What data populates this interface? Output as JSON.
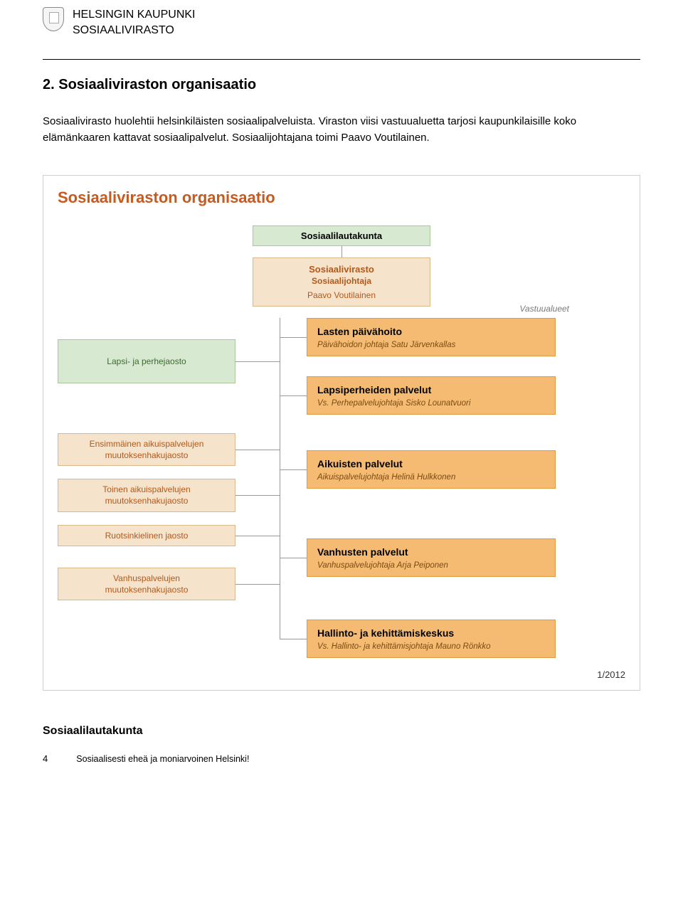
{
  "header": {
    "org_line1": "HELSINGIN KAUPUNKI",
    "org_line2": "SOSIAALIVIRASTO"
  },
  "section_title": "2. Sosiaaliviraston organisaatio",
  "intro_text": "Sosiaalivirasto huolehtii helsinkiläisten sosiaalipalveluista. Viraston viisi vastuualuetta tarjosi kaupunkilaisille koko elämänkaaren kattavat sosiaalipalvelut. Sosiaalijohtajana toimi Paavo Voutilainen.",
  "diagram": {
    "title": "Sosiaaliviraston organisaatio",
    "title_color": "#c65a1f",
    "border_color": "#cfcfcf",
    "date": "1/2012",
    "colors": {
      "green_bg": "#d8e9d2",
      "green_border": "#a8c79a",
      "tan_bg": "#f5e3cb",
      "tan_border": "#d9b88c",
      "orange_bg": "#f5bb73",
      "orange_border": "#e09a3e",
      "tan_text": "#b3581a",
      "line": "#999999"
    },
    "top": {
      "box1": "Sosiaalilautakunta",
      "box2_title": "Sosiaalivirasto",
      "box2_sub": "Sosiaalijohtaja",
      "box2_name": "Paavo Voutilainen",
      "vastuu_label": "Vastuualueet"
    },
    "left_boxes": [
      {
        "text": "Lapsi- ja perhejaosto",
        "large": true,
        "color_key": "green"
      },
      {
        "text": "Ensimmäinen aikuispalvelujen\nmuutoksenhakujaosto",
        "color_key": "tan"
      },
      {
        "text": "Toinen aikuispalvelujen\nmuutoksenhakujaosto",
        "color_key": "tan"
      },
      {
        "text": "Ruotsinkielinen jaosto",
        "color_key": "tan"
      },
      {
        "text": "Vanhuspalvelujen\nmuutoksenhakujaosto",
        "color_key": "tan"
      }
    ],
    "right_boxes": [
      {
        "title": "Lasten päivähoito",
        "sub": "Päivähoidon johtaja Satu Järvenkallas"
      },
      {
        "title": "Lapsiperheiden palvelut",
        "sub": "Vs. Perhepalvelujohtaja Sisko Lounatvuori"
      },
      {
        "title": "Aikuisten palvelut",
        "sub": "Aikuispalvelujohtaja Helinä Hulkkonen"
      },
      {
        "title": "Vanhusten palvelut",
        "sub": "Vanhuspalvelujohtaja Arja Peiponen"
      },
      {
        "title": "Hallinto- ja kehittämiskeskus",
        "sub": "Vs. Hallinto- ja kehittämisjohtaja Mauno Rönkko"
      }
    ]
  },
  "footer_label": "Sosiaalilautakunta",
  "page_number": "4",
  "footer_tag": "Sosiaalisesti eheä ja moniarvoinen Helsinki!"
}
